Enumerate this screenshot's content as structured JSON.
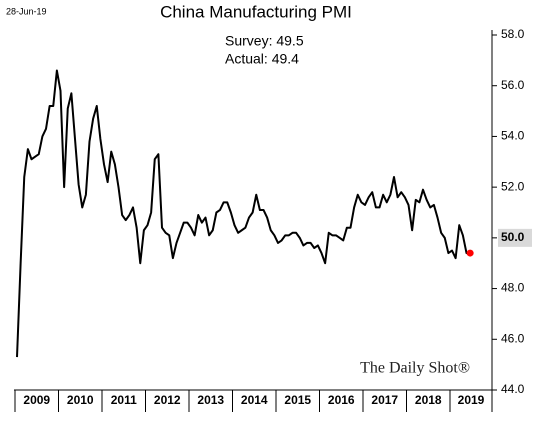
{
  "chart_data": {
    "type": "line",
    "title": "China Manufacturing PMI",
    "date": "28-Jun-19",
    "annotations": [
      "Survey: 49.5",
      "Actual:  49.4"
    ],
    "source": "The Daily Shot®",
    "year_labels": [
      "2009",
      "2010",
      "2011",
      "2012",
      "2013",
      "2014",
      "2015",
      "2016",
      "2017",
      "2018",
      "2019"
    ],
    "series": [
      {
        "name": "China Manufacturing PMI",
        "color": "#000000",
        "values": [
          45.3,
          49.0,
          52.4,
          53.5,
          53.1,
          53.2,
          53.3,
          54.0,
          54.3,
          55.2,
          55.2,
          56.6,
          55.8,
          52.0,
          55.1,
          55.7,
          53.9,
          52.1,
          51.2,
          51.7,
          53.8,
          54.7,
          55.2,
          53.9,
          52.9,
          52.2,
          53.4,
          52.9,
          52.0,
          50.9,
          50.7,
          50.9,
          51.2,
          50.4,
          49.0,
          50.3,
          50.5,
          51.0,
          53.1,
          53.3,
          50.4,
          50.2,
          50.1,
          49.2,
          49.8,
          50.2,
          50.6,
          50.6,
          50.4,
          50.1,
          50.9,
          50.6,
          50.8,
          50.1,
          50.3,
          51.0,
          51.1,
          51.4,
          51.4,
          51.0,
          50.5,
          50.2,
          50.3,
          50.4,
          50.8,
          51.0,
          51.7,
          51.1,
          51.1,
          50.8,
          50.3,
          50.1,
          49.8,
          49.9,
          50.1,
          50.1,
          50.2,
          50.2,
          50.0,
          49.7,
          49.8,
          49.8,
          49.6,
          49.7,
          49.4,
          49.0,
          50.2,
          50.1,
          50.1,
          50.0,
          49.9,
          50.4,
          50.4,
          51.2,
          51.7,
          51.4,
          51.3,
          51.6,
          51.8,
          51.2,
          51.2,
          51.7,
          51.4,
          51.7,
          52.4,
          51.6,
          51.8,
          51.6,
          51.3,
          50.3,
          51.5,
          51.4,
          51.9,
          51.5,
          51.2,
          51.3,
          50.8,
          50.2,
          50.0,
          49.4,
          49.5,
          49.2,
          50.5,
          50.1,
          49.4,
          49.4
        ]
      }
    ],
    "last_point_color": "#ff0000",
    "ylim": [
      44,
      58
    ],
    "yticks": [
      {
        "value": 44,
        "label": "44.0"
      },
      {
        "value": 46,
        "label": "46.0"
      },
      {
        "value": 48,
        "label": "48.0"
      },
      {
        "value": 50,
        "label": "50.0"
      },
      {
        "value": 52,
        "label": "52.0"
      },
      {
        "value": 54,
        "label": "54.0"
      },
      {
        "value": 56,
        "label": "56.0"
      },
      {
        "value": 58,
        "label": "58.0"
      }
    ],
    "highlight_ytick": 50,
    "y_axis_side": "right"
  }
}
